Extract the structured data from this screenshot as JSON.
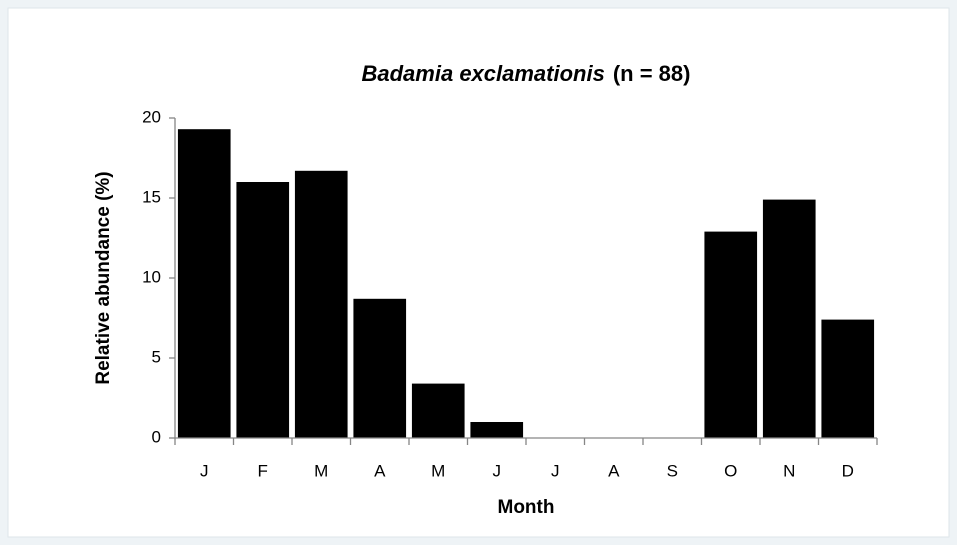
{
  "chart_data": {
    "type": "bar",
    "title": [
      "Badamia exclamationis",
      "(n = 88)"
    ],
    "x_label": "Month",
    "y_label": "Relative abundance  (%)",
    "categories": [
      "J",
      "F",
      "M",
      "A",
      "M",
      "J",
      "J",
      "A",
      "S",
      "O",
      "N",
      "D"
    ],
    "values": [
      19.3,
      16.0,
      16.7,
      8.7,
      3.4,
      1.0,
      0,
      0,
      0,
      12.9,
      14.9,
      7.4
    ],
    "color": "#000000",
    "ylim": [
      0,
      20
    ],
    "yticks": [
      0,
      5,
      10,
      15,
      20
    ],
    "grid": false
  }
}
